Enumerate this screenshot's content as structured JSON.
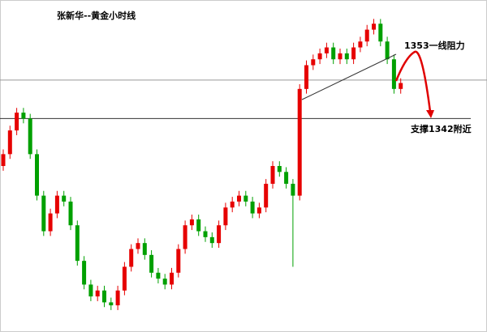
{
  "chart_data": {
    "type": "candlestick",
    "title": "张新华--黄金小时线",
    "annotations": [
      "1353一线阻力",
      "支撑1342附近"
    ],
    "up_color": "#e60000",
    "down_color": "#00a000",
    "ylim": [
      1306,
      1362
    ],
    "hlines": [
      1348.5,
      1342
    ],
    "series": [
      {
        "open": [
          1334,
          1336,
          1340,
          1343,
          1342,
          1336,
          1329,
          1323,
          1326,
          1329,
          1328,
          1324,
          1318,
          1314,
          1312,
          1313,
          1311,
          1310.5,
          1313,
          1317,
          1320,
          1321,
          1319,
          1316,
          1315,
          1314,
          1316,
          1320,
          1324,
          1325,
          1323,
          1322,
          1321,
          1324,
          1327,
          1328,
          1329,
          1328,
          1326,
          1327,
          1331,
          1334,
          1333,
          1331,
          1329,
          1347,
          1351,
          1352,
          1353,
          1354,
          1352,
          1353,
          1352,
          1354,
          1355,
          1357,
          1358,
          1355,
          1352,
          1347
        ],
        "high": [
          1336.8,
          1340.8,
          1343.8,
          1343.8,
          1342.8,
          1336.8,
          1329.8,
          1326.8,
          1329.8,
          1329.8,
          1328.8,
          1324.8,
          1318.8,
          1314.8,
          1313.8,
          1313.8,
          1311.8,
          1313.8,
          1317.8,
          1320.8,
          1321.8,
          1321.8,
          1319.8,
          1316.8,
          1315.8,
          1316.8,
          1320.8,
          1324.8,
          1325.8,
          1325.8,
          1323.8,
          1322.8,
          1324.8,
          1327.8,
          1328.8,
          1329.8,
          1329.8,
          1328.8,
          1327.8,
          1331.8,
          1334.8,
          1334.8,
          1333.8,
          1331.8,
          1347.8,
          1351.8,
          1352.8,
          1353.8,
          1354.8,
          1354.8,
          1353.8,
          1353.8,
          1354.8,
          1355.8,
          1357.8,
          1358.8,
          1358.8,
          1355.8,
          1352.8,
          1348.8
        ],
        "low": [
          1333.2,
          1335.2,
          1339.2,
          1341.2,
          1335.2,
          1328.2,
          1322.2,
          1322.2,
          1325.2,
          1327.2,
          1323.2,
          1317.2,
          1313.2,
          1311.2,
          1311.2,
          1310.2,
          1309.7,
          1309.7,
          1312.2,
          1316.2,
          1319.2,
          1318.2,
          1315.2,
          1314.2,
          1313.2,
          1313.2,
          1315.2,
          1319.2,
          1323.2,
          1322.2,
          1321.2,
          1320.2,
          1320.2,
          1323.2,
          1326.2,
          1327.2,
          1327.2,
          1325.2,
          1325.2,
          1326.2,
          1330.2,
          1332.2,
          1330.2,
          1317,
          1328.2,
          1346.2,
          1350.2,
          1351.2,
          1352.2,
          1351.2,
          1351.2,
          1351.2,
          1351.2,
          1353.2,
          1354.2,
          1356.2,
          1354.2,
          1351.2,
          1346.2,
          1346.2
        ],
        "close": [
          1336,
          1340,
          1343,
          1342,
          1336,
          1329,
          1323,
          1326,
          1329,
          1328,
          1324,
          1318,
          1314,
          1312,
          1313,
          1311,
          1310.5,
          1313,
          1317,
          1320,
          1321,
          1319,
          1316,
          1315,
          1314,
          1316,
          1320,
          1324,
          1325,
          1323,
          1322,
          1321,
          1324,
          1327,
          1328,
          1329,
          1328,
          1326,
          1327,
          1331,
          1334,
          1333,
          1331,
          1329,
          1347,
          1351,
          1352,
          1353,
          1354,
          1352,
          1353,
          1352,
          1354,
          1355,
          1357,
          1358,
          1355,
          1352,
          1347,
          1348
        ]
      }
    ]
  }
}
